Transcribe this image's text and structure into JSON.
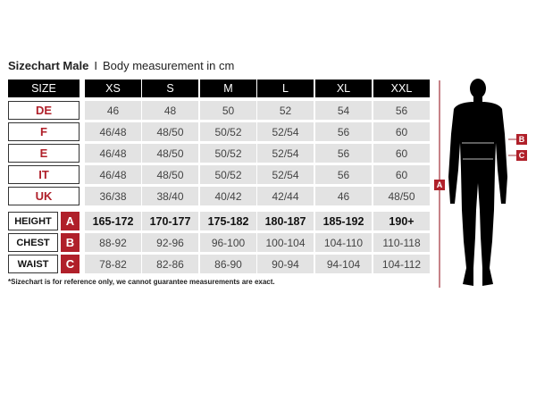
{
  "title": {
    "bold": "Sizechart Male",
    "separator": "I",
    "subtitle": "Body measurement in cm"
  },
  "header": {
    "label": "SIZE",
    "sizes": [
      "XS",
      "S",
      "M",
      "L",
      "XL",
      "XXL"
    ]
  },
  "size_rows": [
    {
      "label": "DE",
      "values": [
        "46",
        "48",
        "50",
        "52",
        "54",
        "56"
      ]
    },
    {
      "label": "F",
      "values": [
        "46/48",
        "48/50",
        "50/52",
        "52/54",
        "56",
        "60"
      ]
    },
    {
      "label": "E",
      "values": [
        "46/48",
        "48/50",
        "50/52",
        "52/54",
        "56",
        "60"
      ]
    },
    {
      "label": "IT",
      "values": [
        "46/48",
        "48/50",
        "50/52",
        "52/54",
        "56",
        "60"
      ]
    },
    {
      "label": "UK",
      "values": [
        "36/38",
        "38/40",
        "40/42",
        "42/44",
        "46",
        "48/50"
      ]
    }
  ],
  "measure_rows": [
    {
      "label": "HEIGHT",
      "letter": "A",
      "bold": true,
      "values": [
        "165-172",
        "170-177",
        "175-182",
        "180-187",
        "185-192",
        "190+"
      ]
    },
    {
      "label": "CHEST",
      "letter": "B",
      "bold": false,
      "values": [
        "88-92",
        "92-96",
        "96-100",
        "100-104",
        "104-110",
        "110-118"
      ]
    },
    {
      "label": "WAIST",
      "letter": "C",
      "bold": false,
      "values": [
        "78-82",
        "82-86",
        "86-90",
        "90-94",
        "94-104",
        "104-112"
      ]
    }
  ],
  "note": "*Sizechart is for reference only, we cannot guarantee measurements are exact.",
  "figure": {
    "height_marker": "A",
    "chest_marker": "B",
    "waist_marker": "C"
  },
  "colors": {
    "accent": "#b0202a",
    "header_bg": "#000000",
    "cell_bg": "#e3e3e3"
  }
}
